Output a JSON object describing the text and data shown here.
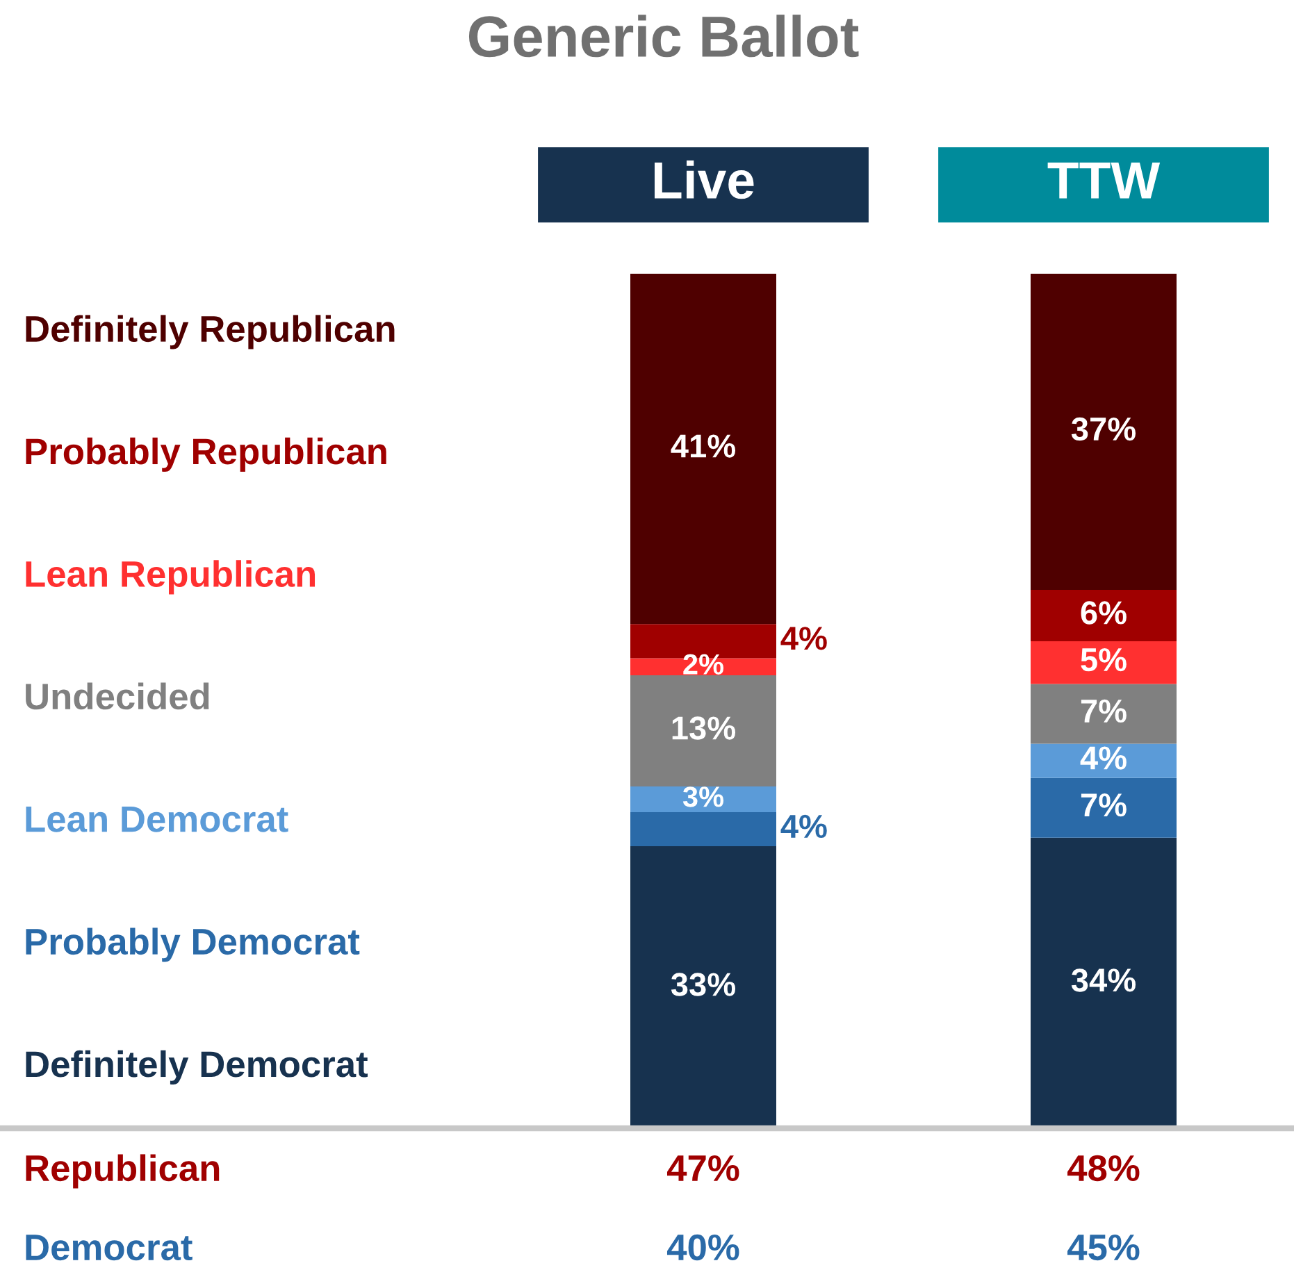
{
  "chart_data": {
    "type": "bar",
    "title": "Generic Ballot",
    "categories": [
      "Live",
      "TTW"
    ],
    "stacked": true,
    "legend": "left",
    "series": [
      {
        "name": "Definitely Democrat",
        "color": "#17324f",
        "values": [
          33,
          34
        ],
        "value_labels": [
          "33%",
          "34%"
        ]
      },
      {
        "name": "Probably Democrat",
        "color": "#2a6aa8",
        "values": [
          4,
          7
        ],
        "value_labels": [
          "4%",
          "7%"
        ]
      },
      {
        "name": "Lean Democrat",
        "color": "#5b9bd8",
        "values": [
          3,
          4
        ],
        "value_labels": [
          "3%",
          "4%"
        ]
      },
      {
        "name": "Undecided",
        "color": "#808080",
        "values": [
          13,
          7
        ],
        "value_labels": [
          "13%",
          "7%"
        ]
      },
      {
        "name": "Lean Republican",
        "color": "#ff3030",
        "values": [
          2,
          5
        ],
        "value_labels": [
          "2%",
          "5%"
        ]
      },
      {
        "name": "Probably Republican",
        "color": "#a00000",
        "values": [
          4,
          6
        ],
        "value_labels": [
          "4%",
          "6%"
        ]
      },
      {
        "name": "Definitely Republican",
        "color": "#4f0000",
        "values": [
          41,
          37
        ],
        "value_labels": [
          "41%",
          "37%"
        ]
      }
    ],
    "annotations": [
      "Republican",
      "47%",
      "48%",
      "Democrat",
      "40%",
      "45%"
    ]
  }
}
